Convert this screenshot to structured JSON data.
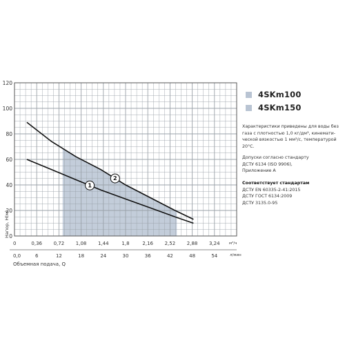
{
  "chart_data": {
    "type": "line",
    "title": "",
    "ylabel": "Напор, Н(м)",
    "xlabel_top_unit": "м³/ч",
    "xlabel_bottom": "Объемная подача, Q",
    "xlabel_bottom_unit": "л/мин",
    "ylim": [
      0,
      120
    ],
    "yticks": [
      0,
      20,
      40,
      60,
      80,
      100,
      120
    ],
    "xlim_m3h": [
      0,
      3.6
    ],
    "xticks_m3h": [
      "0",
      "0,36",
      "0,72",
      "1,08",
      "1,44",
      "1,8",
      "2,16",
      "2,52",
      "2,88",
      "3,24"
    ],
    "xticks_lmin": [
      "0,0",
      "6",
      "12",
      "18",
      "24",
      "30",
      "36",
      "42",
      "48",
      "54"
    ],
    "grid": true,
    "legend_position": "top-right",
    "shaded_region": {
      "x_from": 0.78,
      "x_to": 2.63
    },
    "series": [
      {
        "name": "4SKm100",
        "marker": "1",
        "x": [
          0.2,
          0.6,
          1.0,
          1.4,
          1.8,
          2.2,
          2.6,
          2.9
        ],
        "y": [
          60,
          52,
          44,
          36,
          29,
          22,
          15,
          10
        ]
      },
      {
        "name": "4SKm150",
        "marker": "2",
        "x": [
          0.2,
          0.6,
          1.0,
          1.4,
          1.8,
          2.2,
          2.6,
          2.9
        ],
        "y": [
          89,
          74,
          62,
          52,
          40,
          30,
          20,
          13
        ]
      }
    ]
  },
  "notes": {
    "characteristics": [
      "Характеристики приведены для воды без",
      "газа с плотностью 1,0 кг/дм³, кинемати-",
      "ческой вязкостью 1 мм²/с, температурой",
      "20°С."
    ],
    "tolerance": [
      "Допуски согласно стандарту",
      "ДСТУ 6134 (ISO 9906),",
      "Приложение А"
    ],
    "standards_title": "Соответствует стандартам",
    "standards": [
      "ДСТУ EN 60335-2-41:2015",
      "ДСТУ ГОСТ 6134:2009",
      "ДСТУ 3135.0-95"
    ]
  },
  "colors": {
    "grid": "#9aa1a8",
    "shade": "#b9c4d3",
    "curve": "#111111"
  }
}
